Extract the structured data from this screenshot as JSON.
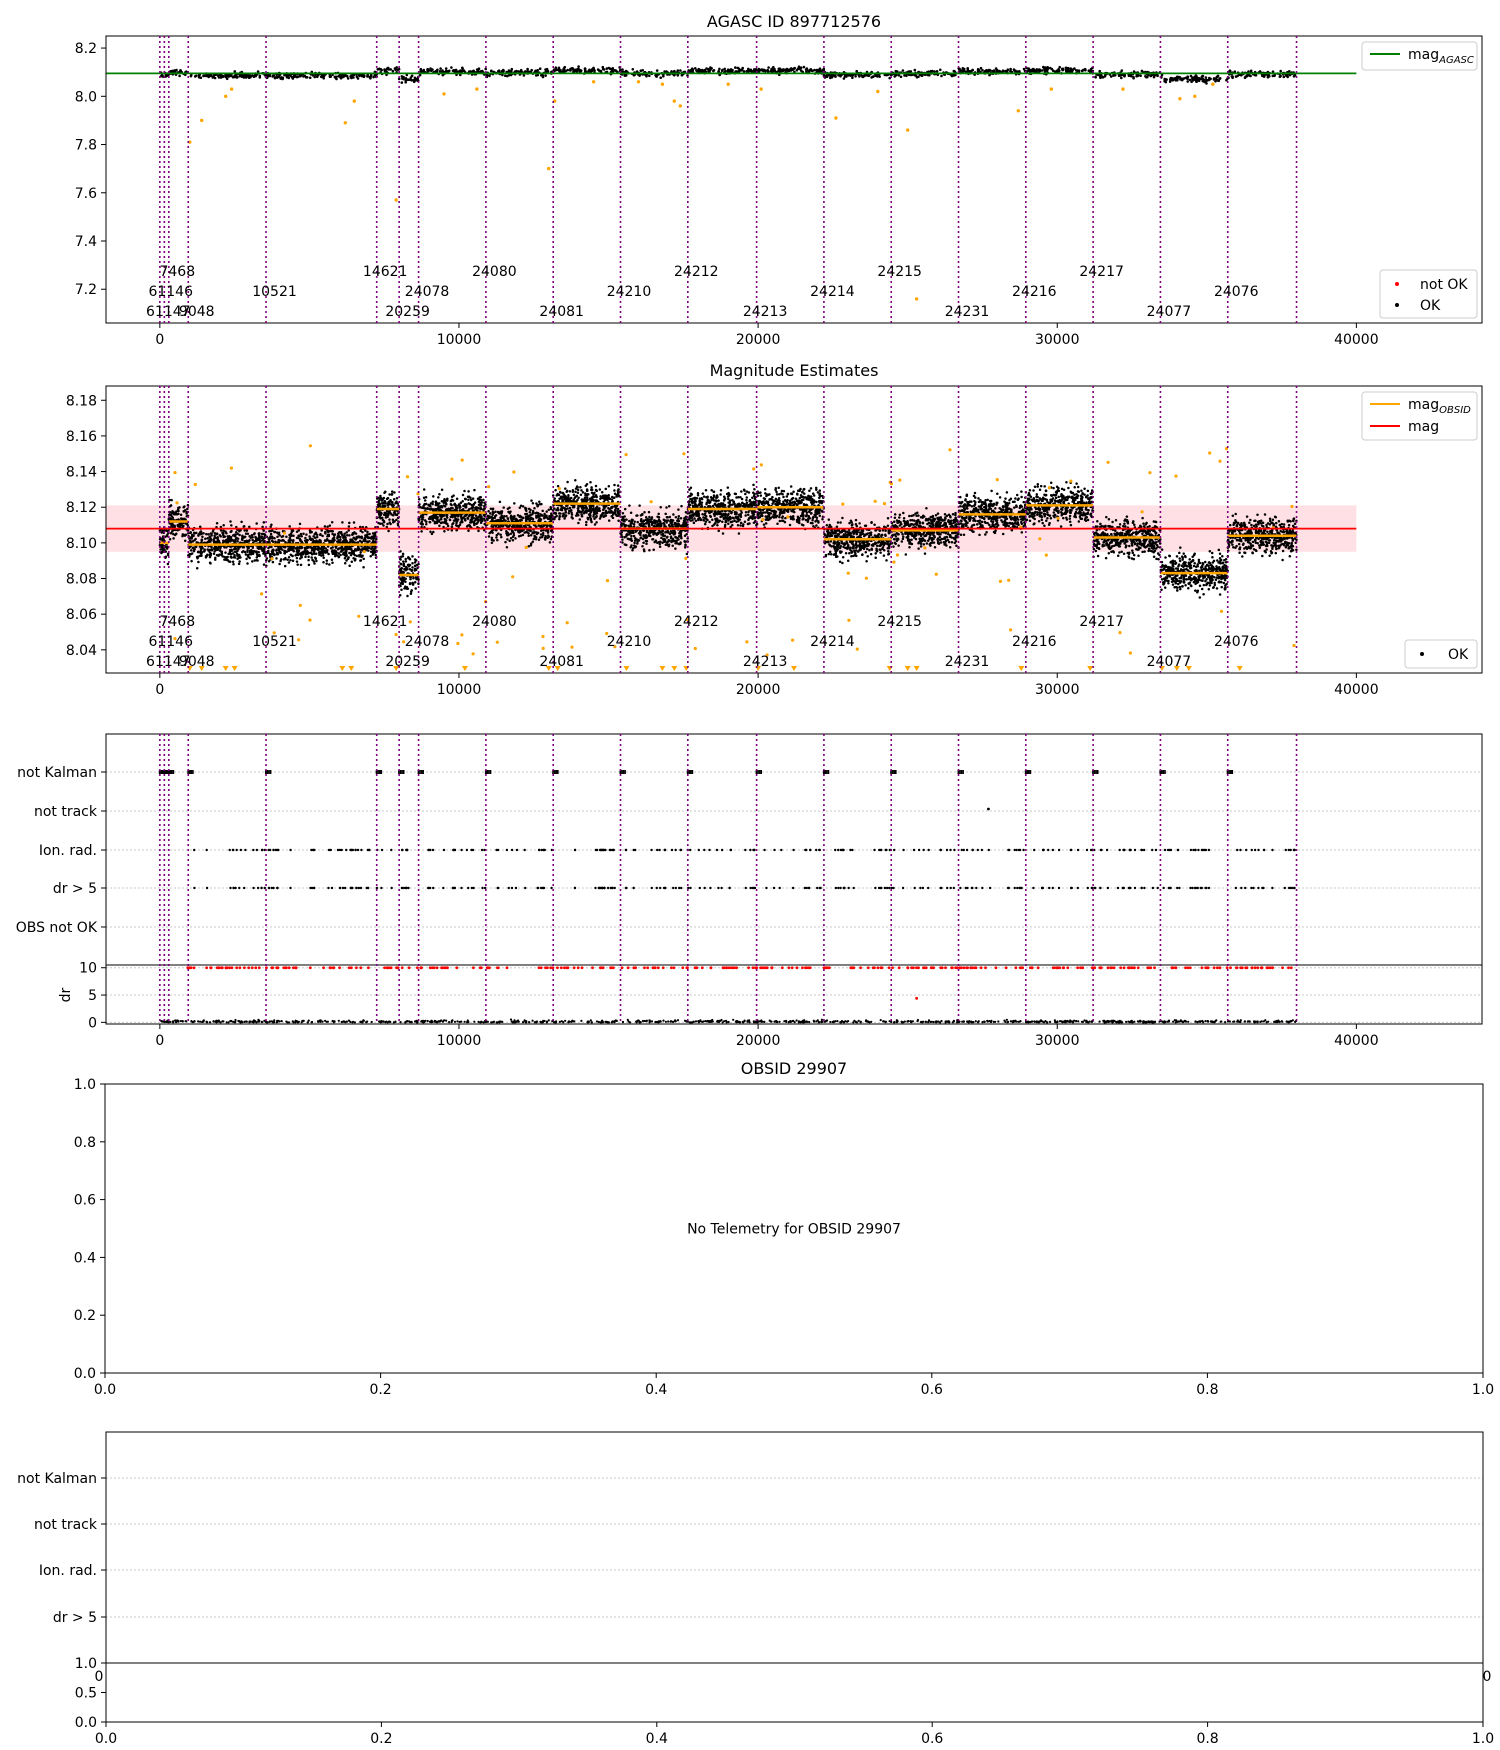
{
  "chart_data": [
    {
      "type": "scatter",
      "title": "AGASC ID 897712576",
      "xlim": [
        -1800,
        44200
      ],
      "ylim": [
        7.06,
        8.25
      ],
      "xticks": [
        0,
        10000,
        20000,
        30000,
        40000
      ],
      "xtick_labels": [
        "0",
        "10000",
        "20000",
        "30000",
        "40000"
      ],
      "yticks": [
        7.2,
        7.4,
        7.6,
        7.8,
        8.0,
        8.2
      ],
      "ytick_labels": [
        "7.2",
        "7.4",
        "7.6",
        "7.8",
        "8.0",
        "8.2"
      ],
      "mag_agasc": 8.095,
      "legends": [
        {
          "position": "top-right",
          "entries": [
            {
              "label": "mag",
              "sub": "AGASC",
              "color": "#008000",
              "kind": "line"
            }
          ]
        },
        {
          "position": "bottom-right",
          "entries": [
            {
              "label": "not OK",
              "color": "#ff0000",
              "kind": "dot"
            },
            {
              "label": "OK",
              "color": "#000000",
              "kind": "dot"
            }
          ]
        }
      ]
    },
    {
      "type": "scatter",
      "title": "Magnitude Estimates",
      "xlim": [
        -1800,
        44200
      ],
      "ylim": [
        8.027,
        8.188
      ],
      "xticks": [
        0,
        10000,
        20000,
        30000,
        40000
      ],
      "xtick_labels": [
        "0",
        "10000",
        "20000",
        "30000",
        "40000"
      ],
      "yticks": [
        8.04,
        8.06,
        8.08,
        8.1,
        8.12,
        8.14,
        8.16,
        8.18
      ],
      "ytick_labels": [
        "8.04",
        "8.06",
        "8.08",
        "8.10",
        "8.12",
        "8.14",
        "8.16",
        "8.18"
      ],
      "mag": 8.108,
      "mag_band": [
        8.095,
        8.121
      ],
      "legends": [
        {
          "position": "top-right",
          "entries": [
            {
              "label": "mag",
              "sub": "OBSID",
              "color": "#ffa500",
              "kind": "line"
            },
            {
              "label": "mag",
              "sub": "",
              "color": "#ff0000",
              "kind": "line"
            }
          ]
        },
        {
          "position": "bottom-right",
          "entries": [
            {
              "label": "OK",
              "color": "#000000",
              "kind": "dot"
            }
          ]
        }
      ]
    },
    {
      "type": "scatter",
      "xlim": [
        -1800,
        44200
      ],
      "xticks": [
        0,
        10000,
        20000,
        30000,
        40000
      ],
      "xtick_labels": [
        "0",
        "10000",
        "20000",
        "30000",
        "40000"
      ],
      "flag_labels": [
        "not Kalman",
        "not track",
        "Ion. rad.",
        "dr > 5",
        "OBS not OK"
      ],
      "dr_ylabel": "dr",
      "dr_ylim": [
        -0.3,
        10.5
      ],
      "dr_yticks": [
        0,
        5,
        10
      ],
      "dr_ytick_labels": [
        "0",
        "5",
        "10"
      ]
    },
    {
      "type": "scatter",
      "title": "OBSID 29907",
      "annotation": "No Telemetry for OBSID 29907",
      "xlim": [
        0,
        1
      ],
      "ylim": [
        0,
        1
      ],
      "xticks": [
        0,
        0.2,
        0.4,
        0.6,
        0.8,
        1.0
      ],
      "xtick_labels": [
        "0.0",
        "0.2",
        "0.4",
        "0.6",
        "0.8",
        "1.0"
      ],
      "yticks": [
        0,
        0.2,
        0.4,
        0.6,
        0.8,
        1.0
      ],
      "ytick_labels": [
        "0.0",
        "0.2",
        "0.4",
        "0.6",
        "0.8",
        "1.0"
      ]
    },
    {
      "type": "scatter",
      "flag_labels": [
        "not Kalman",
        "not track",
        "Ion. rad.",
        "dr > 5"
      ],
      "top_axis_labels": [
        "0",
        "0"
      ],
      "xticks": [
        0,
        0.2,
        0.4,
        0.6,
        0.8,
        1.0
      ],
      "xtick_labels": [
        "0.0",
        "0.2",
        "0.4",
        "0.6",
        "0.8",
        "1.0"
      ],
      "yticks": [
        0,
        0.5,
        1.0
      ],
      "ytick_labels": [
        "0.0",
        "0.5",
        "1.0"
      ]
    }
  ],
  "obsids": [
    {
      "id": "61147",
      "start": -200,
      "end": 80,
      "mag": 8.1,
      "row": 3
    },
    {
      "id": "61146",
      "start": 80,
      "end": 300,
      "mag": 8.1,
      "row": 2
    },
    {
      "id": "7468",
      "start": 300,
      "end": 950,
      "mag": 8.112,
      "row": 1
    },
    {
      "id": "9048",
      "start": 950,
      "end": 3550,
      "mag": 8.099,
      "row": 3
    },
    {
      "id": "10521",
      "start": 3550,
      "end": 7250,
      "mag": 8.099,
      "row": 2
    },
    {
      "id": "14621",
      "start": 7250,
      "end": 8000,
      "mag": 8.119,
      "row": 1
    },
    {
      "id": "20259",
      "start": 8000,
      "end": 8650,
      "mag": 8.082,
      "row": 3
    },
    {
      "id": "24078",
      "start": 8650,
      "end": 10900,
      "mag": 8.117,
      "row": 2
    },
    {
      "id": "24080",
      "start": 10900,
      "end": 13150,
      "mag": 8.111,
      "row": 1
    },
    {
      "id": "24081",
      "start": 13150,
      "end": 15400,
      "mag": 8.122,
      "row": 3
    },
    {
      "id": "24210",
      "start": 15400,
      "end": 17650,
      "mag": 8.108,
      "row": 2
    },
    {
      "id": "24212",
      "start": 17650,
      "end": 19950,
      "mag": 8.119,
      "row": 1
    },
    {
      "id": "24213",
      "start": 19950,
      "end": 22200,
      "mag": 8.12,
      "row": 3
    },
    {
      "id": "24214",
      "start": 22200,
      "end": 24450,
      "mag": 8.102,
      "row": 2
    },
    {
      "id": "24215",
      "start": 24450,
      "end": 26700,
      "mag": 8.107,
      "row": 1
    },
    {
      "id": "24231",
      "start": 26700,
      "end": 28950,
      "mag": 8.116,
      "row": 3
    },
    {
      "id": "24216",
      "start": 28950,
      "end": 31200,
      "mag": 8.121,
      "row": 2
    },
    {
      "id": "24217",
      "start": 31200,
      "end": 33450,
      "mag": 8.103,
      "row": 1
    },
    {
      "id": "24077",
      "start": 33450,
      "end": 35700,
      "mag": 8.083,
      "row": 3
    },
    {
      "id": "24076",
      "start": 35700,
      "end": 38000,
      "mag": 8.104,
      "row": 2
    }
  ],
  "boundaries": [
    0,
    150,
    300,
    950,
    3550,
    7250,
    8000,
    8650,
    10900,
    13150,
    15400,
    17650,
    19950,
    22200,
    24450,
    26700,
    28950,
    31200,
    33450,
    35700,
    38000
  ],
  "colors": {
    "ok": "#000000",
    "not_ok": "#ff0000",
    "suspect": "#ffa500",
    "agasc_line": "#008000",
    "obsid_mag": "#ffa500",
    "mag_line": "#ff0000",
    "mag_band": "#ffd7dc",
    "boundary": "#800080",
    "grid": "#c8c8c8"
  }
}
